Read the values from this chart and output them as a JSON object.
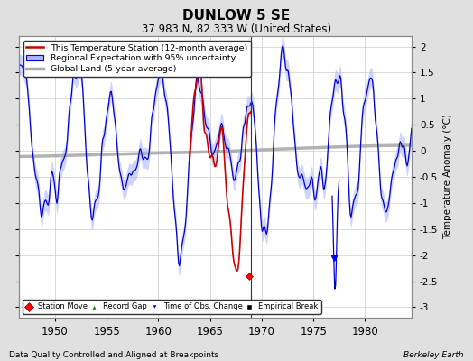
{
  "title": "DUNLOW 5 SE",
  "subtitle": "37.983 N, 82.333 W (United States)",
  "ylabel": "Temperature Anomaly (°C)",
  "xlabel_bottom": "Data Quality Controlled and Aligned at Breakpoints",
  "xlabel_right": "Berkeley Earth",
  "year_start": 1946.5,
  "year_end": 1984.5,
  "ylim": [
    -3.2,
    2.2
  ],
  "yticks": [
    -3,
    -2.5,
    -2,
    -1.5,
    -1,
    -0.5,
    0,
    0.5,
    1,
    1.5,
    2
  ],
  "xticks": [
    1950,
    1955,
    1960,
    1965,
    1970,
    1975,
    1980
  ],
  "bg_color": "#e0e0e0",
  "plot_bg_color": "#ffffff",
  "regional_color": "#0000cc",
  "regional_fill_color": "#b0b8ff",
  "station_color": "#cc0000",
  "global_color": "#aaaaaa",
  "vertical_line_year": 1969.0,
  "station_move_year": 1968.75,
  "station_move_value": -2.4,
  "obs_change_year": 1977.0,
  "obs_change_value": -2.05,
  "legend_labels": [
    "This Temperature Station (12-month average)",
    "Regional Expectation with 95% uncertainty",
    "Global Land (5-year average)"
  ],
  "marker_labels": [
    "Station Move",
    "Record Gap",
    "Time of Obs. Change",
    "Empirical Break"
  ]
}
